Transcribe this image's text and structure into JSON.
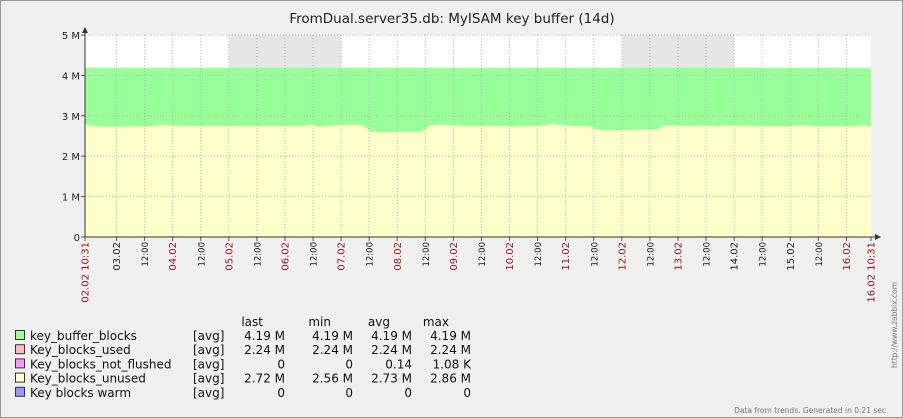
{
  "chart_data": {
    "type": "area",
    "title": "FromDual.server35.db: MyISAM key buffer  (14d)",
    "y_tick_labels": [
      "0",
      "1 M",
      "2 M",
      "3 M",
      "4 M",
      "5 M"
    ],
    "ylim": [
      0,
      5000000
    ],
    "x_range_days": [
      0,
      14
    ],
    "x_start_label": "02.02 10:31",
    "x_end_label": "16.02 10:31",
    "x_date_labels": [
      "03.02",
      "04.02",
      "05.02",
      "06.02",
      "07.02",
      "08.02",
      "09.02",
      "10.02",
      "11.02",
      "12.02",
      "13.02",
      "14.02",
      "15.02",
      "16.02"
    ],
    "x_red_dates": [
      "04.02",
      "05.02",
      "06.02",
      "07.02",
      "08.02",
      "09.02",
      "10.02",
      "11.02",
      "12.02",
      "13.02",
      "16.02"
    ],
    "x_hour_label": "12:00",
    "weekend_ranges": [
      [
        2.5646,
        4.5646
      ],
      [
        9.5646,
        11.5646
      ]
    ],
    "grid": true,
    "series": [
      {
        "name": "key_buffer_blocks",
        "color": "#99ff99",
        "value": 4190000
      },
      {
        "name": "Key_blocks_used",
        "color": "#ffbbbb",
        "value": 2240000
      },
      {
        "name": "Key_blocks_not_flushed",
        "color": "#ff99ff",
        "value": 0
      },
      {
        "name": "Key_blocks_unused",
        "color": "#ffffcc",
        "x": [
          0,
          0.15,
          0.45,
          1.2,
          1.35,
          1.7,
          3.9,
          4.05,
          4.15,
          4.25,
          4.4,
          4.6,
          4.85,
          4.95,
          5.1,
          5.3,
          5.45,
          6.0,
          6.15,
          6.3,
          6.6,
          6.7,
          7.5,
          7.62,
          7.72,
          8.2,
          8.3,
          8.45,
          8.55,
          8.65,
          9.0,
          9.1,
          9.3,
          9.6,
          10.2,
          10.3,
          10.9,
          11.0,
          11.3,
          11.4,
          11.8,
          11.9,
          12.6,
          12.7,
          12.9,
          13.0,
          13.7,
          13.8,
          13.92,
          14.0
        ],
        "y": [
          2780000,
          2740000,
          2730000,
          2740000,
          2780000,
          2750000,
          2750000,
          2790000,
          2730000,
          2740000,
          2760000,
          2780000,
          2770000,
          2760000,
          2610000,
          2590000,
          2600000,
          2610000,
          2760000,
          2780000,
          2770000,
          2750000,
          2750000,
          2730000,
          2740000,
          2760000,
          2790000,
          2780000,
          2760000,
          2750000,
          2740000,
          2660000,
          2640000,
          2650000,
          2660000,
          2760000,
          2750000,
          2760000,
          2740000,
          2760000,
          2760000,
          2740000,
          2740000,
          2770000,
          2760000,
          2740000,
          2740000,
          2760000,
          2750000,
          2720000
        ]
      },
      {
        "name": "Key blocks warm",
        "color": "#9999ff",
        "value": 0
      }
    ]
  },
  "legend": {
    "headers": [
      "last",
      "min",
      "avg",
      "max"
    ],
    "rows": [
      {
        "name": "key_buffer_blocks",
        "func": "[avg]",
        "last": "4.19 M",
        "min": "4.19 M",
        "avg": "4.19 M",
        "max": "4.19 M",
        "color": "#99ff99"
      },
      {
        "name": "Key_blocks_used",
        "func": "[avg]",
        "last": "2.24 M",
        "min": "2.24 M",
        "avg": "2.24 M",
        "max": "2.24 M",
        "color": "#ffbbbb"
      },
      {
        "name": "Key_blocks_not_flushed",
        "func": "[avg]",
        "last": "0",
        "min": "0",
        "avg": "0.14",
        "max": "1.08 K",
        "color": "#ff99ff"
      },
      {
        "name": "Key_blocks_unused",
        "func": "[avg]",
        "last": "2.72 M",
        "min": "2.56 M",
        "avg": "2.73 M",
        "max": "2.86 M",
        "color": "#ffffcc"
      },
      {
        "name": "Key blocks warm",
        "func": "[avg]",
        "last": "0",
        "min": "0",
        "avg": "0",
        "max": "0",
        "color": "#9999ff"
      }
    ]
  },
  "footer": "Data from trends. Generated in 0.21 sec",
  "watermark": "http://www.zabbix.com"
}
